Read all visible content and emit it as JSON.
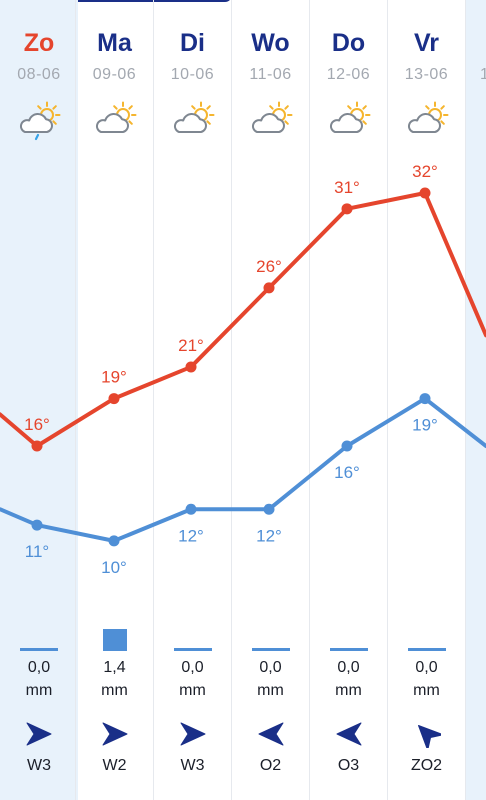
{
  "days": [
    {
      "name": "Zo",
      "date": "08-06",
      "today": true,
      "icon": "partly-sunny-rain-icon",
      "high": 16,
      "low": 11,
      "rain": "0,0",
      "rain_mm": 0.0,
      "unit": "mm",
      "wind": "W3",
      "wind_dir": "west"
    },
    {
      "name": "Ma",
      "date": "09-06",
      "today": false,
      "icon": "partly-cloudy-icon",
      "high": 19,
      "low": 10,
      "rain": "1,4",
      "rain_mm": 1.4,
      "unit": "mm",
      "wind": "W2",
      "wind_dir": "west"
    },
    {
      "name": "Di",
      "date": "10-06",
      "today": false,
      "icon": "partly-cloudy-icon",
      "high": 21,
      "low": 12,
      "rain": "0,0",
      "rain_mm": 0.0,
      "unit": "mm",
      "wind": "W3",
      "wind_dir": "west"
    },
    {
      "name": "Wo",
      "date": "11-06",
      "today": false,
      "icon": "partly-cloudy-icon",
      "high": 26,
      "low": 12,
      "rain": "0,0",
      "rain_mm": 0.0,
      "unit": "mm",
      "wind": "O2",
      "wind_dir": "east"
    },
    {
      "name": "Do",
      "date": "12-06",
      "today": false,
      "icon": "partly-cloudy-icon",
      "high": 31,
      "low": 16,
      "rain": "0,0",
      "rain_mm": 0.0,
      "unit": "mm",
      "wind": "O3",
      "wind_dir": "east"
    },
    {
      "name": "Vr",
      "date": "13-06",
      "today": false,
      "icon": "partly-cloudy-icon",
      "high": 32,
      "low": 19,
      "rain": "0,0",
      "rain_mm": 0.0,
      "unit": "mm",
      "wind": "ZO2",
      "wind_dir": "southeast"
    }
  ],
  "edge_partial_date": "1",
  "colors": {
    "high": "#e5452d",
    "low": "#4f8fd6",
    "day": "#1a2f88",
    "today": "#e5452d",
    "sun": "#f5b52e",
    "cloud": "#7f8791",
    "rain_bar": "#4f8fd6",
    "wind_arrow": "#1a2f88"
  },
  "degree_symbol": "°",
  "chart_data": {
    "type": "line",
    "categories": [
      "08-06",
      "09-06",
      "10-06",
      "11-06",
      "12-06",
      "13-06"
    ],
    "series": [
      {
        "name": "",
        "values": [
          16,
          19,
          21,
          26,
          31,
          32
        ]
      },
      {
        "name": "",
        "values": [
          11,
          10,
          12,
          12,
          16,
          19
        ]
      }
    ],
    "edge_trend": {
      "high_prev": 18,
      "high_next": 23,
      "low_prev": 12,
      "low_next": 16
    }
  }
}
